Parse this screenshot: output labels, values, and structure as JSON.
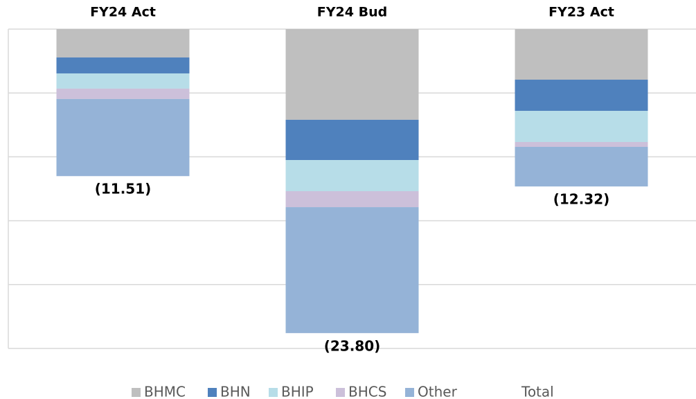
{
  "chart_data": {
    "type": "stacked_bar",
    "categories": [
      "FY24 Act",
      "FY24 Bud",
      "FY23 Act"
    ],
    "series": [
      {
        "name": "BHMC",
        "color": "#bfbfbf",
        "values": [
          -2.22,
          -7.1,
          -3.96
        ]
      },
      {
        "name": "BHN",
        "color": "#4f81bd",
        "values": [
          -1.25,
          -3.15,
          -2.44
        ]
      },
      {
        "name": "BHIP",
        "color": "#b7dde8",
        "values": [
          -1.19,
          -2.44,
          -2.44
        ]
      },
      {
        "name": "BHCS",
        "color": "#ccc0da",
        "values": [
          -0.81,
          -1.25,
          -0.38
        ]
      },
      {
        "name": "Other",
        "color": "#95b3d7",
        "values": [
          -6.04,
          -9.86,
          -3.1
        ]
      },
      {
        "name": "Total",
        "color": "none",
        "values": [
          -11.51,
          -23.8,
          -12.32
        ],
        "value_labels": [
          "(11.51)",
          "(23.80)",
          "(12.32)"
        ]
      }
    ],
    "ylim": [
      -25,
      0
    ],
    "yticks": [
      0,
      -5,
      -10,
      -15,
      -20,
      -25
    ],
    "grid": true
  }
}
